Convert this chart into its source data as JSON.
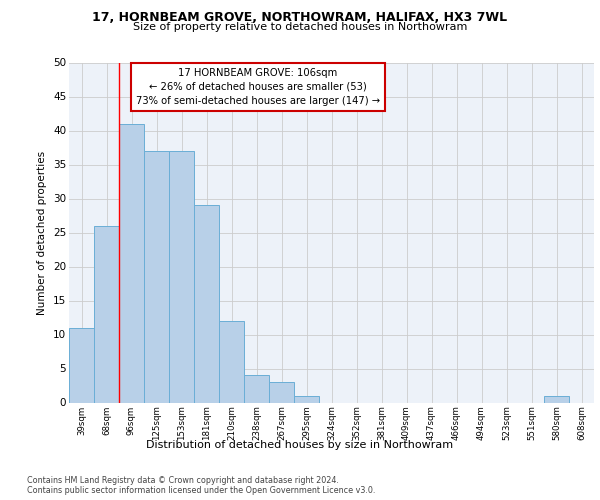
{
  "title1": "17, HORNBEAM GROVE, NORTHOWRAM, HALIFAX, HX3 7WL",
  "title2": "Size of property relative to detached houses in Northowram",
  "xlabel": "Distribution of detached houses by size in Northowram",
  "ylabel": "Number of detached properties",
  "categories": [
    "39sqm",
    "68sqm",
    "96sqm",
    "125sqm",
    "153sqm",
    "181sqm",
    "210sqm",
    "238sqm",
    "267sqm",
    "295sqm",
    "324sqm",
    "352sqm",
    "381sqm",
    "409sqm",
    "437sqm",
    "466sqm",
    "494sqm",
    "523sqm",
    "551sqm",
    "580sqm",
    "608sqm"
  ],
  "values": [
    11,
    26,
    41,
    37,
    37,
    29,
    12,
    4,
    3,
    1,
    0,
    0,
    0,
    0,
    0,
    0,
    0,
    0,
    0,
    1,
    0
  ],
  "bar_color": "#b8d0e8",
  "bar_edge_color": "#6aaed6",
  "grid_color": "#cccccc",
  "annotation_line1": "17 HORNBEAM GROVE: 106sqm",
  "annotation_line2": "← 26% of detached houses are smaller (53)",
  "annotation_line3": "73% of semi-detached houses are larger (147) →",
  "annotation_box_color": "#ffffff",
  "annotation_box_edge_color": "#cc0000",
  "red_line_x": 1.5,
  "ylim": [
    0,
    50
  ],
  "yticks": [
    0,
    5,
    10,
    15,
    20,
    25,
    30,
    35,
    40,
    45,
    50
  ],
  "footer1": "Contains HM Land Registry data © Crown copyright and database right 2024.",
  "footer2": "Contains public sector information licensed under the Open Government Licence v3.0.",
  "background_color": "#edf2f9"
}
